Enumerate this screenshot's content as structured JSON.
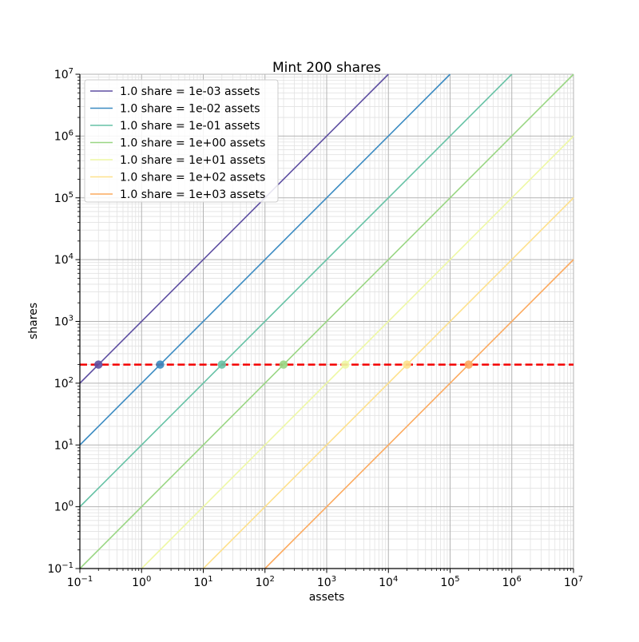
{
  "figure": {
    "background": "#ffffff"
  },
  "chart_data": {
    "type": "line",
    "title": "Mint 200 shares",
    "xlabel": "assets",
    "ylabel": "shares",
    "xscale": "log",
    "yscale": "log",
    "xlim": [
      0.1,
      10000000
    ],
    "ylim": [
      0.1,
      10000000
    ],
    "x_tick_exponents": [
      -1,
      0,
      1,
      2,
      3,
      4,
      5,
      6,
      7
    ],
    "y_tick_exponents": [
      -1,
      0,
      1,
      2,
      3,
      4,
      5,
      6,
      7
    ],
    "tick_label_format": "10^e",
    "grid": {
      "show_major": true,
      "show_minor": true,
      "major_color": "#b3b3b3",
      "minor_color": "#e2e2e2"
    },
    "spine_color": "#000000",
    "target_line": {
      "shares": 200,
      "color": "#f40000",
      "style": "dashed",
      "width": 2.5
    },
    "series": [
      {
        "name": "1.0 share = 1e-03 assets",
        "assets_per_share": 0.001,
        "color": "#5e4fa2",
        "marker_point": {
          "assets": 0.2,
          "shares": 200
        }
      },
      {
        "name": "1.0 share = 1e-02 assets",
        "assets_per_share": 0.01,
        "color": "#3b8bc2",
        "marker_point": {
          "assets": 2,
          "shares": 200
        }
      },
      {
        "name": "1.0 share = 1e-01 assets",
        "assets_per_share": 0.1,
        "color": "#66c2a5",
        "marker_point": {
          "assets": 20,
          "shares": 200
        }
      },
      {
        "name": "1.0 share = 1e+00 assets",
        "assets_per_share": 1,
        "color": "#99d683",
        "marker_point": {
          "assets": 200,
          "shares": 200
        }
      },
      {
        "name": "1.0 share = 1e+01 assets",
        "assets_per_share": 10,
        "color": "#eef8a4",
        "marker_point": {
          "assets": 2000,
          "shares": 200
        }
      },
      {
        "name": "1.0 share = 1e+02 assets",
        "assets_per_share": 100,
        "color": "#fee18c",
        "marker_point": {
          "assets": 20000,
          "shares": 200
        }
      },
      {
        "name": "1.0 share = 1e+03 assets",
        "assets_per_share": 1000,
        "color": "#fcaa5f",
        "marker_point": {
          "assets": 200000,
          "shares": 200
        }
      }
    ],
    "legend": {
      "position": "upper-left",
      "border_color": "#cccccc",
      "background_color": "#ffffff"
    }
  }
}
